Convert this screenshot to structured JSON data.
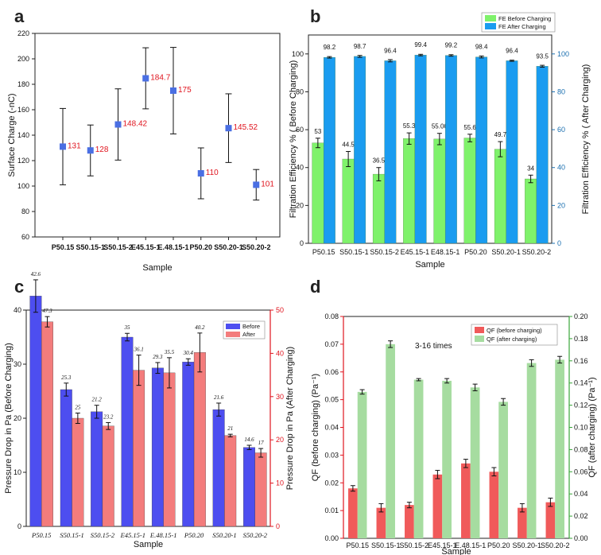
{
  "panels": {
    "a": "a",
    "b": "b",
    "c": "c",
    "d": "d"
  },
  "chart_data": [
    {
      "id": "a",
      "type": "scatter",
      "categories": [
        "P50.15",
        "S50.15-1",
        "S50.15-2",
        "E45.15-1",
        "E.48.15-1",
        "P50.20",
        "S50.20-1",
        "S50.20-2"
      ],
      "values": [
        131,
        128,
        148.42,
        184.7,
        175,
        110,
        145.52,
        101
      ],
      "value_labels": [
        "131",
        "128",
        "148.42",
        "184.7",
        "175",
        "110",
        "145.52",
        "101"
      ],
      "errors": [
        30,
        20,
        28,
        24,
        34,
        20,
        27,
        12
      ],
      "xlabel": "Sample",
      "ylabel": "Surface Charge (-nC)",
      "ylim": [
        60,
        220
      ],
      "yticks": [
        "60",
        "80",
        "100",
        "120",
        "140",
        "160",
        "180",
        "200",
        "220"
      ],
      "marker_color": "#4a6fe3",
      "label_color": "#e0141e"
    },
    {
      "id": "b",
      "type": "bar",
      "categories": [
        "P50.15",
        "S50.15-1",
        "S50.15-2",
        "E45.15-1",
        "E48.15-1",
        "P50.20",
        "S50.20-1",
        "S50.20-2"
      ],
      "series": [
        {
          "name": "FE Before Charging",
          "values": [
            53,
            44.5,
            36.5,
            55.3,
            55.06,
            55.6,
            49.7,
            34
          ],
          "labels": [
            "53",
            "44.5",
            "36.5",
            "55.3",
            "55.06",
            "55.6",
            "49.7",
            "34"
          ],
          "errors": [
            2.5,
            4,
            3.5,
            3,
            3,
            2,
            4,
            2
          ],
          "color": "#7ff26b"
        },
        {
          "name": "FE After Charging",
          "values": [
            98.2,
            98.7,
            96.4,
            99.4,
            99.2,
            98.4,
            96.4,
            93.5
          ],
          "labels": [
            "98.2",
            "98.7",
            "96.4",
            "99.4",
            "99.2",
            "98.4",
            "96.4",
            "93.5"
          ],
          "errors": [
            0.4,
            0.5,
            0.6,
            0.4,
            0.4,
            0.5,
            0.3,
            0.5
          ],
          "color": "#1a9cf0"
        }
      ],
      "xlabel": "Sample",
      "ylabel": "Filtration Efficiency % ( Before Charging)",
      "ylabel_right": "Filtration Efficiency % ( After Charging)",
      "ylim": [
        0,
        110
      ],
      "yticks": [
        "0",
        "20",
        "40",
        "60",
        "80",
        "100"
      ]
    },
    {
      "id": "c",
      "type": "bar",
      "categories": [
        "P50.15",
        "S50.15-1",
        "S50.15-2",
        "E45.15-1",
        "E.48.15-1",
        "P50.20",
        "S50.20-1",
        "S50.20-2"
      ],
      "series": [
        {
          "name": "Before",
          "axis": "left",
          "values": [
            42.6,
            25.3,
            21.2,
            35,
            29.3,
            30.4,
            21.6,
            14.6
          ],
          "labels": [
            "42.6",
            "25.3",
            "21.2",
            "35",
            "29.3",
            "30.4",
            "21.6",
            "14.6"
          ],
          "errors": [
            3,
            1.2,
            1.2,
            0.7,
            1,
            0.6,
            1.2,
            0.4
          ],
          "color": "#4d4ef0"
        },
        {
          "name": "After",
          "axis": "right",
          "values": [
            47.3,
            25,
            23.2,
            36.1,
            35.5,
            40.2,
            21,
            17
          ],
          "labels": [
            "47.3",
            "25",
            "23.2",
            "36.1",
            "35.5",
            "40.2",
            "21",
            "17"
          ],
          "errors": [
            1.2,
            1.2,
            0.8,
            3.5,
            3.5,
            4.5,
            0.3,
            1
          ],
          "color": "#f37c7c"
        }
      ],
      "xlabel": "Sample",
      "ylabel": "Pressure Drop in Pa (Before Charging)",
      "ylabel_right": "Pressure Drop in Pa (After Charging)",
      "ylim": [
        0,
        40
      ],
      "ylim_right": [
        0,
        50
      ],
      "yticks": [
        "0",
        "10",
        "20",
        "30",
        "40"
      ],
      "yticks_right": [
        "0",
        "10",
        "20",
        "30",
        "40",
        "50"
      ]
    },
    {
      "id": "d",
      "type": "bar",
      "categories": [
        "P50.15",
        "S50.15-1",
        "S50.15-2",
        "E45.15-1",
        "E.48.15-1",
        "P50.20",
        "S50.20-1",
        "S50.20-2"
      ],
      "series": [
        {
          "name": "QF (before charging)",
          "axis": "left",
          "values": [
            0.018,
            0.011,
            0.012,
            0.023,
            0.027,
            0.024,
            0.011,
            0.013
          ],
          "errors": [
            0.001,
            0.0015,
            0.001,
            0.0015,
            0.0015,
            0.0015,
            0.0015,
            0.0015
          ],
          "color": "#f05a5a"
        },
        {
          "name": "QF (after charging)",
          "axis": "right",
          "values": [
            0.132,
            0.175,
            0.143,
            0.142,
            0.136,
            0.123,
            0.158,
            0.161
          ],
          "errors": [
            0.002,
            0.003,
            0.001,
            0.002,
            0.003,
            0.003,
            0.003,
            0.003
          ],
          "color": "#a6dca0"
        }
      ],
      "xlabel": "Sample",
      "ylabel": "QF (before charging) (Pa⁻¹)",
      "ylabel_right": "QF (after charging) (Pa⁻¹)",
      "ylim": [
        0,
        0.08
      ],
      "ylim_right": [
        0,
        0.2
      ],
      "yticks": [
        "0.00",
        "0.01",
        "0.02",
        "0.03",
        "0.04",
        "0.05",
        "0.06",
        "0.07",
        "0.08"
      ],
      "yticks_right": [
        "0.00",
        "0.02",
        "0.04",
        "0.06",
        "0.08",
        "0.10",
        "0.12",
        "0.14",
        "0.16",
        "0.18",
        "0.20"
      ],
      "annotation": "3-16 times"
    }
  ]
}
